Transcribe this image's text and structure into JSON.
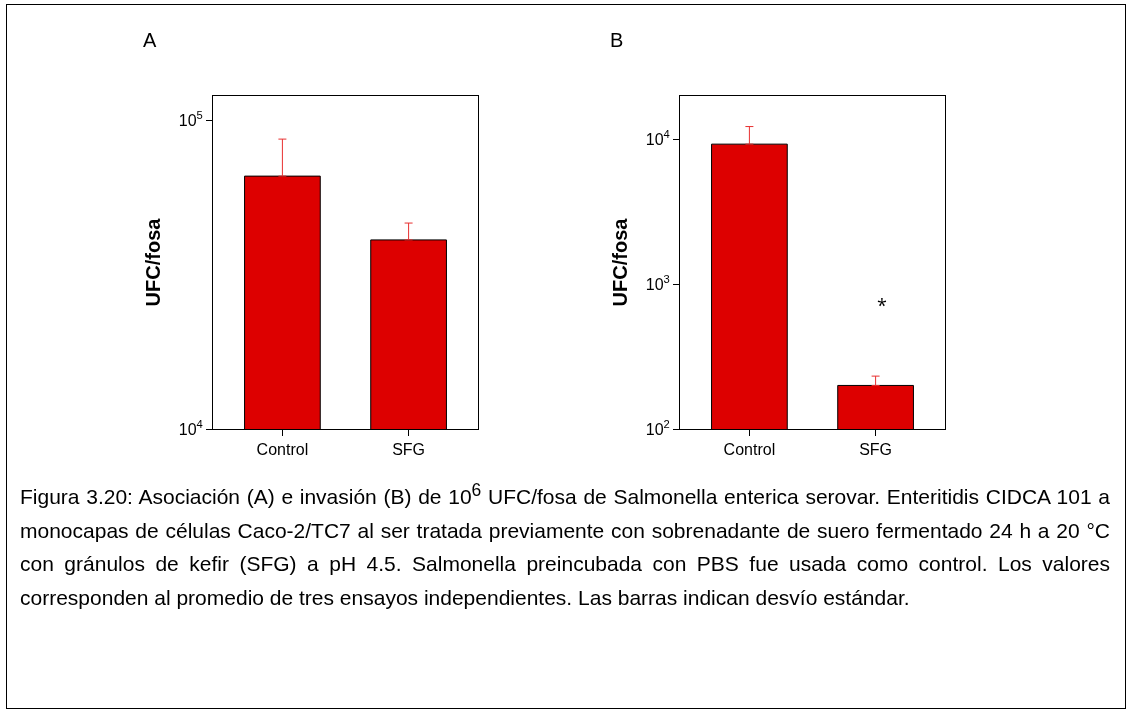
{
  "chart_data": [
    {
      "type": "bar",
      "title": "A",
      "ylabel": "UFC/fosa",
      "categories": [
        "Control",
        "SFG"
      ],
      "values": [
        66000,
        41000
      ],
      "errors": [
        [
          66000,
          87000
        ],
        [
          41000,
          46500
        ]
      ],
      "color": "#dd0000",
      "log": true,
      "ylim": [
        10000,
        120000
      ],
      "yticks": [
        {
          "value": 10000,
          "label": "10$^{4}$"
        },
        {
          "value": 100000,
          "label": "10$^{5}$"
        }
      ],
      "grid": false,
      "annotations": [
        "Figura 3.20: Asociación (A) e invasión (B) de 10$^{6}$ UFC/fosa de Salmonella enterica serovar. Enteritidis CIDCA 101 a monocapas de células Caco-2/TC7 al ser tratada previamente con sobrenadante de suero fermentado 24 h a 20 °C con gránulos de kefir (SFG) a pH 4.5. Salmonella preincubada con PBS fue usada como control. Los valores corresponden al promedio de tres ensayos independientes. Las barras indican desvío estándar."
      ]
    },
    {
      "type": "bar",
      "title": "B",
      "ylabel": "UFC/fosa",
      "categories": [
        "Control",
        "SFG"
      ],
      "values": [
        9300,
        200
      ],
      "errors": [
        [
          9300,
          12300
        ],
        [
          200,
          232
        ]
      ],
      "color": "#dd0000",
      "log": true,
      "ylim": [
        100,
        20000
      ],
      "yticks": [
        {
          "value": 100,
          "label": "10$^{2}$"
        },
        {
          "value": 1000,
          "label": "10$^{3}$"
        },
        {
          "value": 10000,
          "label": "10$^{4}$"
        }
      ],
      "grid": false,
      "annotations": [
        "*"
      ]
    }
  ]
}
